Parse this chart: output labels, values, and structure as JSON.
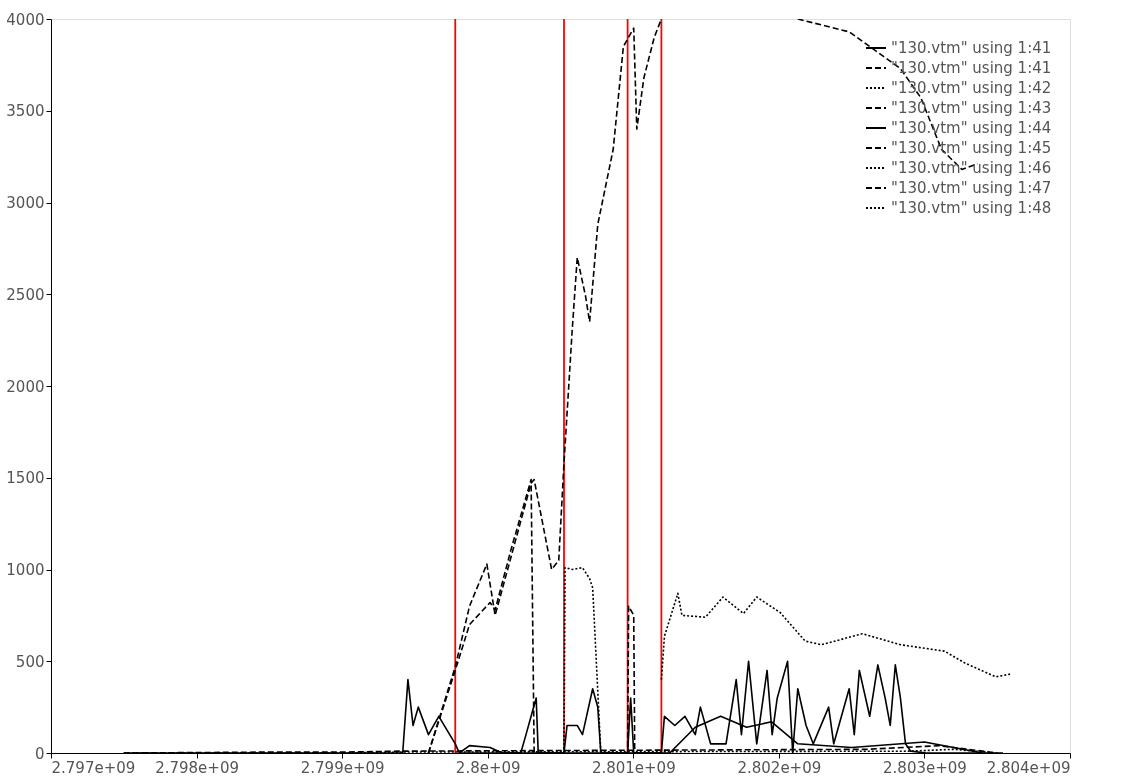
{
  "chart_data": {
    "type": "line",
    "xlim": [
      2797000000,
      2804000000
    ],
    "xticks": [
      {
        "value": 2797000000,
        "label": "2.797e+09"
      },
      {
        "value": 2798000000,
        "label": "2.798e+09"
      },
      {
        "value": 2799000000,
        "label": "2.799e+09"
      },
      {
        "value": 2800000000,
        "label": "2.8e+09"
      },
      {
        "value": 2801000000,
        "label": "2.801e+09"
      },
      {
        "value": 2802000000,
        "label": "2.802e+09"
      },
      {
        "value": 2803000000,
        "label": "2.803e+09"
      },
      {
        "value": 2804000000,
        "label": "2.804e+09"
      }
    ],
    "ylim": [
      0,
      4000
    ],
    "yticks": [
      0,
      500,
      1000,
      1500,
      2000,
      2500,
      3000,
      3500,
      4000
    ],
    "grid": false,
    "legend": "top right",
    "ref_lines": [
      {
        "axis": "x",
        "value": 2799777000,
        "color": "#ff0000"
      },
      {
        "axis": "x",
        "value": 2800524000,
        "color": "#ff0000"
      },
      {
        "axis": "x",
        "value": 2800961000,
        "color": "#ff0000"
      },
      {
        "axis": "x",
        "value": 2801193000,
        "color": "#ff0000"
      }
    ],
    "series": [
      {
        "name": "\"130.vtm\" using 1:41",
        "color": "#000000",
        "line_style": "solid",
        "x": [
          2797500000,
          2799416000,
          2799452000,
          2799487000,
          2799523000,
          2799593000,
          2799664000,
          2799777000,
          2799805000,
          2800227000,
          2800263000,
          2800298000,
          2800333000,
          2800347000,
          2800524000,
          2800545000,
          2800615000,
          2800651000,
          2800721000,
          2800756000,
          2800777000,
          2800961000,
          2800982000,
          2801003000,
          2801193000,
          2801214000,
          2801285000,
          2801355000,
          2801426000,
          2801461000,
          2801531000,
          2801637000,
          2801707000,
          2801743000,
          2801792000,
          2801848000,
          2801919000,
          2801954000,
          2801989000,
          2802060000,
          2802095000,
          2802130000,
          2802187000,
          2802236000,
          2802342000,
          2802377000,
          2802483000,
          2802518000,
          2802553000,
          2802624000,
          2802680000,
          2802730000,
          2802765000,
          2802800000,
          2802835000,
          2802870000,
          2802906000,
          2803011000,
          2803540000
        ],
        "values": [
          0,
          0,
          400,
          150,
          250,
          100,
          200,
          50,
          0,
          0,
          100,
          200,
          300,
          0,
          0,
          150,
          150,
          100,
          350,
          250,
          0,
          0,
          300,
          0,
          0,
          200,
          150,
          200,
          100,
          250,
          50,
          50,
          400,
          100,
          500,
          50,
          450,
          100,
          300,
          500,
          0,
          350,
          150,
          50,
          250,
          50,
          350,
          100,
          450,
          200,
          480,
          300,
          150,
          480,
          300,
          50,
          10,
          0,
          0
        ]
      },
      {
        "name": "\"130.vtm\" using 1:41",
        "color": "#000000",
        "line_style": "dashed",
        "x": [
          2799593000,
          2799777000,
          2799875000,
          2800016000,
          2800051000,
          2800157000,
          2800298000,
          2800319000,
          2800340000,
          2800500000
        ],
        "values": [
          0,
          450,
          700,
          820,
          780,
          1100,
          1490,
          0,
          0,
          0
        ]
      },
      {
        "name": "\"130.vtm\" using 1:42",
        "color": "#000000",
        "line_style": "dotted",
        "x": [
          2800524000,
          2800531000,
          2800580000,
          2800651000,
          2800700000,
          2800721000,
          2800777000,
          2800900000
        ],
        "values": [
          0,
          1010,
          1000,
          1010,
          950,
          900,
          0,
          0
        ]
      },
      {
        "name": "\"130.vtm\" using 1:43",
        "color": "#000000",
        "line_style": "dashed",
        "x": [
          2800940000,
          2800961000,
          2800968000,
          2801003000,
          2801010000,
          2801100000
        ],
        "values": [
          0,
          0,
          800,
          750,
          0,
          0
        ]
      },
      {
        "name": "\"130.vtm\" using 1:44",
        "color": "#000000",
        "line_style": "solid",
        "x": [
          2799805000,
          2799875000,
          2800016000,
          2800100000,
          2801250000,
          2801426000,
          2801600000,
          2801778000,
          2801950000,
          2802130000,
          2802500000,
          2803000000,
          2803400000
        ],
        "values": [
          0,
          40,
          30,
          0,
          0,
          140,
          200,
          140,
          170,
          50,
          30,
          60,
          0
        ]
      },
      {
        "name": "\"130.vtm\" using 1:45",
        "color": "#000000",
        "line_style": "dashed",
        "x": [
          2799593000,
          2799777000,
          2799875000,
          2799994000,
          2800051000,
          2800298000,
          2800319000,
          2800439000,
          2800488000,
          2800524000,
          2800580000,
          2800615000,
          2800672000,
          2800700000,
          2800756000,
          2800862000,
          2800932000,
          2801003000,
          2801024000,
          2801073000,
          2801144000,
          2801193000,
          2801300000,
          2802130000,
          2802483000,
          2802835000,
          2802976000,
          2803117000,
          2803258000,
          2803364000
        ],
        "values": [
          0,
          470,
          800,
          1030,
          750,
          1470,
          1490,
          1000,
          1050,
          1580,
          2300,
          2700,
          2490,
          2350,
          2880,
          3290,
          3850,
          3950,
          3400,
          3680,
          3900,
          4000,
          null,
          4000,
          3930,
          3730,
          3570,
          3290,
          3180,
          3210
        ]
      },
      {
        "name": "\"130.vtm\" using 1:46",
        "color": "#000000",
        "line_style": "dotted",
        "x": [
          2801193000,
          2801214000,
          2801306000,
          2801334000,
          2801496000,
          2801616000,
          2801757000,
          2801848000,
          2802010000,
          2802180000,
          2802292000,
          2802574000,
          2802835000,
          2803138000,
          2803279000,
          2803490000,
          2803589000
        ],
        "values": [
          400,
          636,
          870,
          750,
          740,
          850,
          760,
          850,
          765,
          610,
          590,
          650,
          590,
          555,
          490,
          415,
          430
        ]
      },
      {
        "name": "\"130.vtm\" using 1:47",
        "color": "#000000",
        "line_style": "dashed",
        "x": [
          2797500000,
          2798500000,
          2799000000,
          2799400000,
          2802600000,
          2803100000,
          2803500000
        ],
        "values": [
          0,
          5,
          5,
          10,
          20,
          40,
          0
        ]
      },
      {
        "name": "\"130.vtm\" using 1:48",
        "color": "#000000",
        "line_style": "dotted",
        "x": [
          2797500000,
          2799000000,
          2799400000,
          2802900000,
          2803200000,
          2803500000
        ],
        "values": [
          0,
          0,
          5,
          10,
          20,
          0
        ]
      }
    ]
  }
}
